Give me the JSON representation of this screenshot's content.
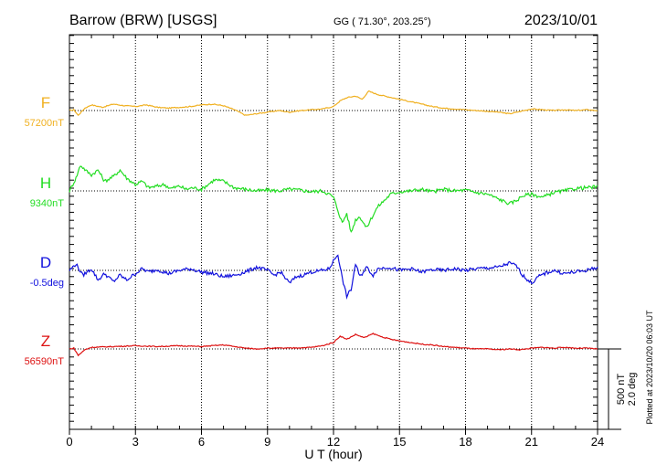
{
  "header": {
    "station": "Barrow (BRW)  [USGS]",
    "coords": "GG ( 71.30°, 203.25°)",
    "date": "2023/10/01"
  },
  "side_note": "Plotted at 2023/10/20 06:03 UT",
  "chart_data": {
    "type": "line",
    "xlabel": "U T (hour)",
    "xlim": [
      0,
      24
    ],
    "xticks": [
      0,
      3,
      6,
      9,
      12,
      15,
      18,
      21,
      24
    ],
    "xtick_labels": [
      "0",
      "3",
      "6",
      "9",
      "12",
      "15",
      "18",
      "21",
      "24"
    ],
    "scale_bar": {
      "nT": "500 nT",
      "deg": "2.0 deg"
    },
    "series": [
      {
        "name": "F",
        "baseline": "57200nT",
        "color": "#f0b020",
        "points": [
          [
            0,
            0
          ],
          [
            0.2,
            5
          ],
          [
            0.4,
            -30
          ],
          [
            0.7,
            15
          ],
          [
            1,
            35
          ],
          [
            1.5,
            20
          ],
          [
            2,
            40
          ],
          [
            2.5,
            30
          ],
          [
            3,
            25
          ],
          [
            3.5,
            35
          ],
          [
            4,
            20
          ],
          [
            4.5,
            15
          ],
          [
            5,
            20
          ],
          [
            5.5,
            25
          ],
          [
            6,
            35
          ],
          [
            6.5,
            40
          ],
          [
            7,
            30
          ],
          [
            7.5,
            5
          ],
          [
            8,
            -30
          ],
          [
            8.5,
            -20
          ],
          [
            9,
            -10
          ],
          [
            9.5,
            0
          ],
          [
            10,
            -10
          ],
          [
            10.5,
            0
          ],
          [
            11,
            5
          ],
          [
            11.5,
            10
          ],
          [
            12,
            25
          ],
          [
            12.3,
            60
          ],
          [
            12.6,
            80
          ],
          [
            13,
            90
          ],
          [
            13.3,
            70
          ],
          [
            13.6,
            120
          ],
          [
            14,
            100
          ],
          [
            14.5,
            85
          ],
          [
            15,
            70
          ],
          [
            15.5,
            55
          ],
          [
            16,
            40
          ],
          [
            16.5,
            25
          ],
          [
            17,
            15
          ],
          [
            17.5,
            10
          ],
          [
            18,
            5
          ],
          [
            18.5,
            0
          ],
          [
            19,
            -5
          ],
          [
            19.5,
            -10
          ],
          [
            20,
            -20
          ],
          [
            20.5,
            -5
          ],
          [
            21,
            10
          ],
          [
            21.5,
            5
          ],
          [
            22,
            0
          ],
          [
            22.5,
            5
          ],
          [
            23,
            0
          ],
          [
            23.5,
            5
          ],
          [
            24,
            0
          ]
        ]
      },
      {
        "name": "H",
        "baseline": "9340nT",
        "color": "#22dd22",
        "points": [
          [
            0,
            0
          ],
          [
            0.3,
            80
          ],
          [
            0.5,
            160
          ],
          [
            0.8,
            120
          ],
          [
            1,
            100
          ],
          [
            1.3,
            130
          ],
          [
            1.6,
            60
          ],
          [
            2,
            90
          ],
          [
            2.3,
            130
          ],
          [
            2.6,
            80
          ],
          [
            3,
            40
          ],
          [
            3.3,
            60
          ],
          [
            3.6,
            20
          ],
          [
            4,
            30
          ],
          [
            4.3,
            40
          ],
          [
            4.6,
            15
          ],
          [
            5,
            30
          ],
          [
            5.3,
            10
          ],
          [
            5.6,
            20
          ],
          [
            6,
            10
          ],
          [
            6.3,
            40
          ],
          [
            6.6,
            70
          ],
          [
            7,
            60
          ],
          [
            7.5,
            20
          ],
          [
            8,
            10
          ],
          [
            8.5,
            0
          ],
          [
            9,
            5
          ],
          [
            9.5,
            0
          ],
          [
            10,
            10
          ],
          [
            10.5,
            5
          ],
          [
            11,
            -5
          ],
          [
            11.5,
            0
          ],
          [
            11.8,
            -20
          ],
          [
            12,
            -40
          ],
          [
            12.2,
            -120
          ],
          [
            12.4,
            -200
          ],
          [
            12.6,
            -140
          ],
          [
            12.8,
            -260
          ],
          [
            13,
            -180
          ],
          [
            13.2,
            -160
          ],
          [
            13.5,
            -230
          ],
          [
            13.8,
            -150
          ],
          [
            14,
            -100
          ],
          [
            14.3,
            -60
          ],
          [
            14.6,
            -20
          ],
          [
            15,
            -5
          ],
          [
            15.5,
            0
          ],
          [
            16,
            10
          ],
          [
            16.5,
            -5
          ],
          [
            17,
            10
          ],
          [
            17.5,
            0
          ],
          [
            18,
            5
          ],
          [
            18.5,
            -10
          ],
          [
            19,
            -20
          ],
          [
            19.5,
            -50
          ],
          [
            20,
            -80
          ],
          [
            20.3,
            -60
          ],
          [
            20.6,
            -30
          ],
          [
            21,
            -20
          ],
          [
            21.5,
            -40
          ],
          [
            22,
            -10
          ],
          [
            22.5,
            0
          ],
          [
            23,
            15
          ],
          [
            23.5,
            20
          ],
          [
            24,
            25
          ]
        ]
      },
      {
        "name": "D",
        "baseline": "-0.5deg",
        "color": "#1010dd",
        "points": [
          [
            0,
            0
          ],
          [
            0.3,
            40
          ],
          [
            0.6,
            -30
          ],
          [
            1,
            10
          ],
          [
            1.3,
            -60
          ],
          [
            1.6,
            -20
          ],
          [
            2,
            -70
          ],
          [
            2.3,
            -30
          ],
          [
            2.6,
            -60
          ],
          [
            3,
            -20
          ],
          [
            3.3,
            10
          ],
          [
            3.6,
            -10
          ],
          [
            4,
            5
          ],
          [
            4.5,
            -20
          ],
          [
            5,
            0
          ],
          [
            5.5,
            10
          ],
          [
            6,
            -10
          ],
          [
            6.5,
            -20
          ],
          [
            7,
            -40
          ],
          [
            7.5,
            -30
          ],
          [
            8,
            -10
          ],
          [
            8.5,
            20
          ],
          [
            9,
            0
          ],
          [
            9.3,
            -30
          ],
          [
            9.6,
            -10
          ],
          [
            10,
            -80
          ],
          [
            10.3,
            -40
          ],
          [
            10.6,
            -30
          ],
          [
            11,
            -10
          ],
          [
            11.5,
            0
          ],
          [
            11.8,
            10
          ],
          [
            12,
            60
          ],
          [
            12.2,
            100
          ],
          [
            12.4,
            -50
          ],
          [
            12.6,
            -160
          ],
          [
            12.8,
            -120
          ],
          [
            13,
            40
          ],
          [
            13.2,
            -40
          ],
          [
            13.5,
            20
          ],
          [
            13.8,
            -30
          ],
          [
            14,
            10
          ],
          [
            14.5,
            20
          ],
          [
            15,
            0
          ],
          [
            15.5,
            10
          ],
          [
            16,
            -10
          ],
          [
            16.5,
            5
          ],
          [
            17,
            0
          ],
          [
            17.5,
            10
          ],
          [
            18,
            0
          ],
          [
            18.5,
            10
          ],
          [
            19,
            15
          ],
          [
            19.5,
            20
          ],
          [
            20,
            45
          ],
          [
            20.3,
            30
          ],
          [
            20.6,
            -30
          ],
          [
            21,
            -80
          ],
          [
            21.3,
            -40
          ],
          [
            21.6,
            -20
          ],
          [
            22,
            0
          ],
          [
            22.5,
            -20
          ],
          [
            23,
            -10
          ],
          [
            23.5,
            0
          ],
          [
            24,
            20
          ]
        ]
      },
      {
        "name": "Z",
        "baseline": "56590nT",
        "color": "#dd1111",
        "points": [
          [
            0,
            0
          ],
          [
            0.2,
            5
          ],
          [
            0.4,
            -40
          ],
          [
            0.7,
            -5
          ],
          [
            1,
            10
          ],
          [
            2,
            15
          ],
          [
            3,
            20
          ],
          [
            4,
            15
          ],
          [
            5,
            20
          ],
          [
            6,
            15
          ],
          [
            7,
            25
          ],
          [
            7.5,
            15
          ],
          [
            8,
            5
          ],
          [
            8.5,
            0
          ],
          [
            9,
            5
          ],
          [
            10,
            5
          ],
          [
            11,
            10
          ],
          [
            11.5,
            20
          ],
          [
            12,
            40
          ],
          [
            12.3,
            80
          ],
          [
            12.6,
            60
          ],
          [
            13,
            90
          ],
          [
            13.4,
            70
          ],
          [
            13.8,
            95
          ],
          [
            14.2,
            75
          ],
          [
            14.6,
            60
          ],
          [
            15,
            50
          ],
          [
            15.5,
            40
          ],
          [
            16,
            30
          ],
          [
            16.5,
            25
          ],
          [
            17,
            15
          ],
          [
            17.5,
            10
          ],
          [
            18,
            5
          ],
          [
            18.5,
            0
          ],
          [
            19,
            0
          ],
          [
            19.5,
            -5
          ],
          [
            20,
            0
          ],
          [
            20.5,
            -5
          ],
          [
            21,
            5
          ],
          [
            21.5,
            10
          ],
          [
            22,
            5
          ],
          [
            22.5,
            10
          ],
          [
            23,
            5
          ],
          [
            23.5,
            5
          ],
          [
            24,
            0
          ]
        ]
      }
    ]
  }
}
